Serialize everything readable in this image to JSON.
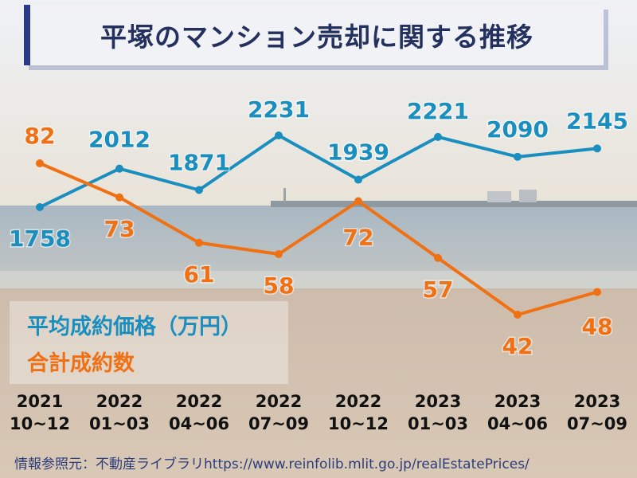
{
  "title": "平塚のマンション売却に関する推移",
  "source": "情報参照元：不動産ライブラリhttps://www.reinfolib.mlit.go.jp/realEstatePrices/",
  "colors": {
    "price": "#1a8fbf",
    "count": "#f07014",
    "title_accent": "#2a3a88"
  },
  "chart_data": {
    "type": "line",
    "categories": [
      [
        "2021",
        "10~12"
      ],
      [
        "2022",
        "01~03"
      ],
      [
        "2022",
        "04~06"
      ],
      [
        "2022",
        "07~09"
      ],
      [
        "2022",
        "10~12"
      ],
      [
        "2023",
        "01~03"
      ],
      [
        "2023",
        "04~06"
      ],
      [
        "2023",
        "07~09"
      ]
    ],
    "series": [
      {
        "name": "平均成約価格（万円）",
        "color": "#1a8fbf",
        "values": [
          1758,
          2012,
          1871,
          2231,
          1939,
          2221,
          2090,
          2145
        ]
      },
      {
        "name": "合計成約数",
        "color": "#f07014",
        "values": [
          82,
          73,
          61,
          58,
          72,
          57,
          42,
          48
        ]
      }
    ],
    "legend_position": "bottom-left",
    "grid": false
  }
}
